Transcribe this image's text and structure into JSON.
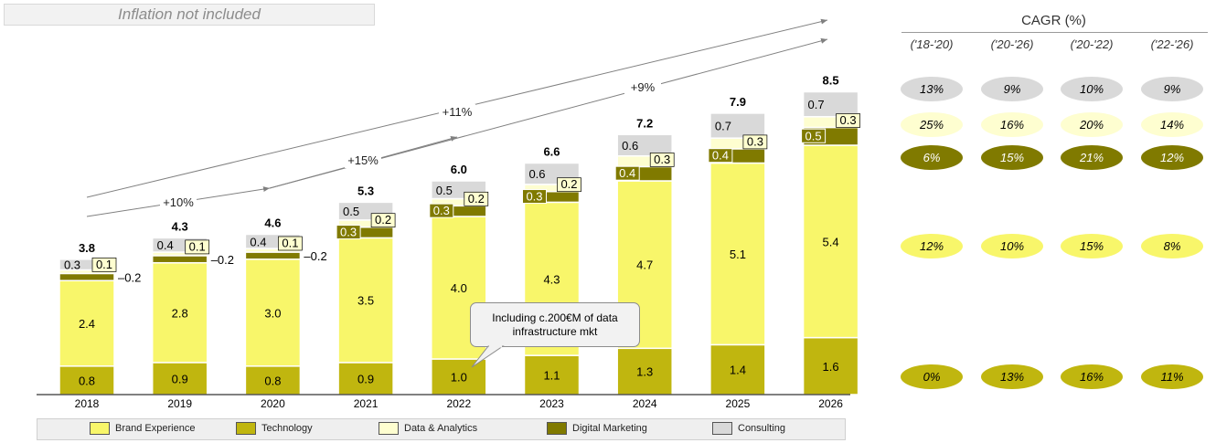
{
  "note": "Inflation not included",
  "chart_data": {
    "type": "bar",
    "stacked": true,
    "categories": [
      "2018",
      "2019",
      "2020",
      "2021",
      "2022",
      "2023",
      "2024",
      "2025",
      "2026"
    ],
    "totals": [
      "3.8",
      "4.3",
      "4.6",
      "5.3",
      "6.0",
      "6.6",
      "7.2",
      "7.9",
      "8.5"
    ],
    "series": [
      {
        "name": "Technology",
        "color": "#c0b60f",
        "values": [
          0.8,
          0.9,
          0.8,
          0.9,
          1.0,
          1.1,
          1.3,
          1.4,
          1.6
        ],
        "labels": [
          "0.8",
          "0.9",
          "0.8",
          "0.9",
          "1.0",
          "1.1",
          "1.3",
          "1.4",
          "1.6"
        ]
      },
      {
        "name": "Brand Experience",
        "color": "#f8f66a",
        "values": [
          2.4,
          2.8,
          3.0,
          3.5,
          4.0,
          4.3,
          4.7,
          5.1,
          5.4
        ],
        "labels": [
          "2.4",
          "2.8",
          "3.0",
          "3.5",
          "4.0",
          "4.3",
          "4.7",
          "5.1",
          "5.4"
        ]
      },
      {
        "name": "Digital Marketing",
        "color": "#807a00",
        "values": [
          0.2,
          0.2,
          0.2,
          0.3,
          0.3,
          0.3,
          0.4,
          0.4,
          0.5
        ],
        "labels": [
          "0.2",
          "0.2",
          "0.2",
          "0.3",
          "0.3",
          "0.3",
          "0.4",
          "0.4",
          "0.5"
        ]
      },
      {
        "name": "Data & Analytics",
        "color": "#fefed0",
        "values": [
          0.1,
          0.1,
          0.1,
          0.2,
          0.2,
          0.2,
          0.3,
          0.3,
          0.3
        ],
        "labels": [
          "0.1",
          "0.1",
          "0.1",
          "0.2",
          "0.2",
          "0.2",
          "0.3",
          "0.3",
          "0.3"
        ]
      },
      {
        "name": "Consulting",
        "color": "#d9d9d9",
        "values": [
          0.3,
          0.4,
          0.4,
          0.5,
          0.5,
          0.6,
          0.6,
          0.7,
          0.7
        ],
        "labels": [
          "0.3",
          "0.4",
          "0.4",
          "0.5",
          "0.5",
          "0.6",
          "0.6",
          "0.7",
          "0.7"
        ]
      }
    ],
    "growth_annotations": [
      "+10%",
      "+15%",
      "+11%",
      "+9%"
    ],
    "callout": "Including c.200€M of data infrastructure mkt",
    "legend": [
      "Brand Experience",
      "Technology",
      "Data & Analytics",
      "Digital Marketing",
      "Consulting"
    ],
    "legend_colors": [
      "#f8f66a",
      "#c0b60f",
      "#fefed0",
      "#807a00",
      "#d9d9d9"
    ]
  },
  "cagr": {
    "title": "CAGR (%)",
    "periods": [
      "('18-'20)",
      "('20-'26)",
      "('20-'22)",
      "('22-'26)"
    ],
    "rows": [
      {
        "segment": "Consulting",
        "color": "#d9d9d9",
        "text_color": "#000000",
        "values": [
          "13%",
          "9%",
          "10%",
          "9%"
        ]
      },
      {
        "segment": "Data & Analytics",
        "color": "#fefed0",
        "text_color": "#000000",
        "values": [
          "25%",
          "16%",
          "20%",
          "14%"
        ]
      },
      {
        "segment": "Digital Marketing",
        "color": "#807a00",
        "text_color": "#ffffff",
        "values": [
          "6%",
          "15%",
          "21%",
          "12%"
        ]
      },
      {
        "segment": "Brand Experience",
        "color": "#f8f66a",
        "text_color": "#000000",
        "values": [
          "12%",
          "10%",
          "15%",
          "8%"
        ]
      },
      {
        "segment": "Technology",
        "color": "#c0b60f",
        "text_color": "#000000",
        "values": [
          "0%",
          "13%",
          "16%",
          "11%"
        ]
      }
    ]
  }
}
